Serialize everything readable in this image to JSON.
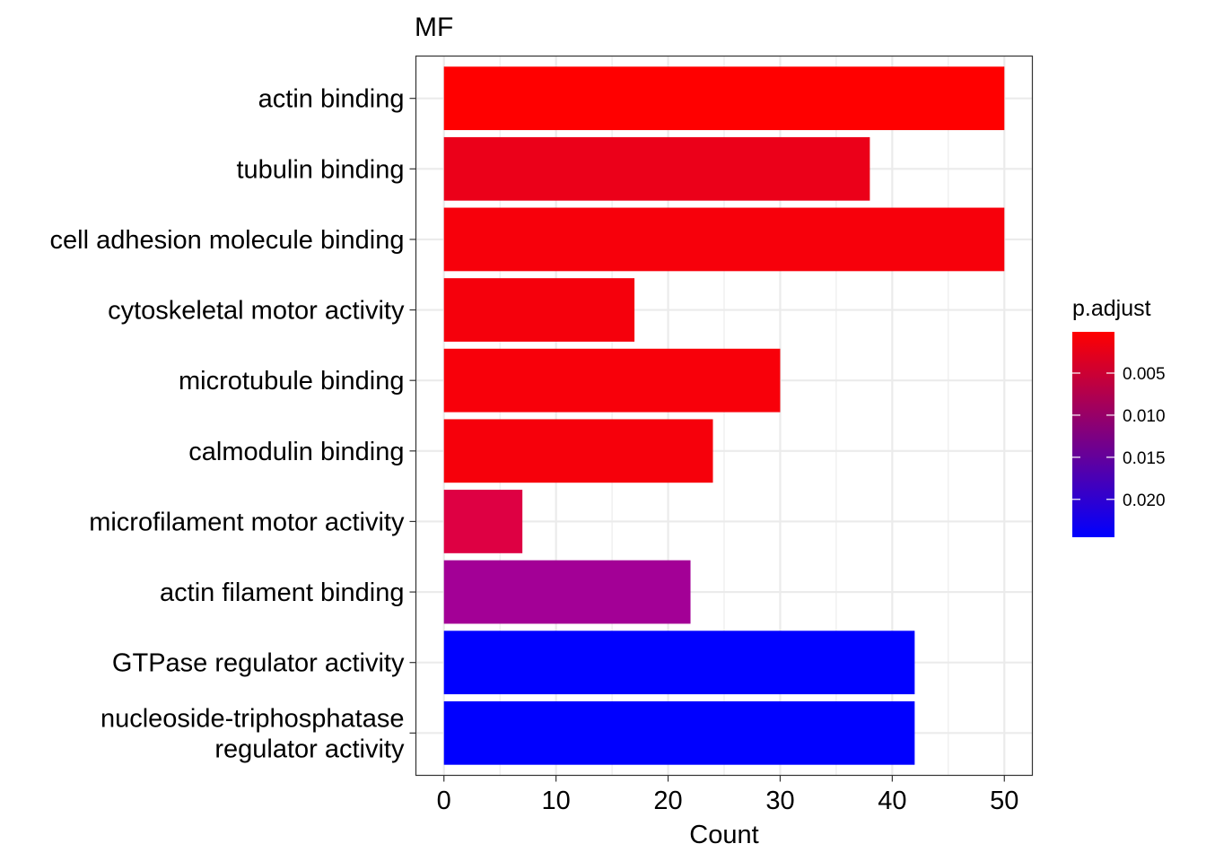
{
  "chart_data": {
    "type": "bar",
    "orientation": "horizontal",
    "title": "MF",
    "xlabel": "Count",
    "ylabel": "",
    "xlim": [
      -2.5,
      52.5
    ],
    "xticks": [
      0,
      10,
      20,
      30,
      40,
      50
    ],
    "xtick_labels": [
      "0",
      "10",
      "20",
      "30",
      "40",
      "50"
    ],
    "grid": true,
    "categories": [
      "actin binding",
      "tubulin binding",
      "cell adhesion molecule binding",
      "cytoskeletal motor activity",
      "microtubule binding",
      "calmodulin binding",
      "microfilament motor activity",
      "actin filament binding",
      "GTPase regulator activity",
      "nucleoside-triphosphatase\nregulator activity"
    ],
    "category_lines": [
      [
        "actin binding"
      ],
      [
        "tubulin binding"
      ],
      [
        "cell adhesion molecule binding"
      ],
      [
        "cytoskeletal motor activity"
      ],
      [
        "microtubule binding"
      ],
      [
        "calmodulin binding"
      ],
      [
        "microfilament motor activity"
      ],
      [
        "actin filament binding"
      ],
      [
        "GTPase regulator activity"
      ],
      [
        "nucleoside-triphosphatase",
        "regulator activity"
      ]
    ],
    "values": [
      50,
      38,
      50,
      17,
      30,
      24,
      7,
      22,
      42,
      42
    ],
    "p_adjust": [
      0.0001,
      0.0025,
      0.0012,
      0.0013,
      0.0011,
      0.0012,
      0.0055,
      0.0145,
      0.0245,
      0.0245
    ],
    "bar_colors": [
      "#FF0000",
      "#EB0019",
      "#F7000B",
      "#F5000C",
      "#F8000A",
      "#F6000B",
      "#DE0043",
      "#A30096",
      "#0000FF",
      "#0000FF"
    ],
    "legend": {
      "title": "p.adjust",
      "placement": "right",
      "type": "colorbar",
      "range": [
        0.0001,
        0.0245
      ],
      "color_low": "#FF0000",
      "color_high": "#0000FF",
      "ticks": [
        0.005,
        0.01,
        0.015,
        0.02
      ],
      "tick_labels": [
        "0.005",
        "0.010",
        "0.015",
        "0.020"
      ]
    }
  }
}
